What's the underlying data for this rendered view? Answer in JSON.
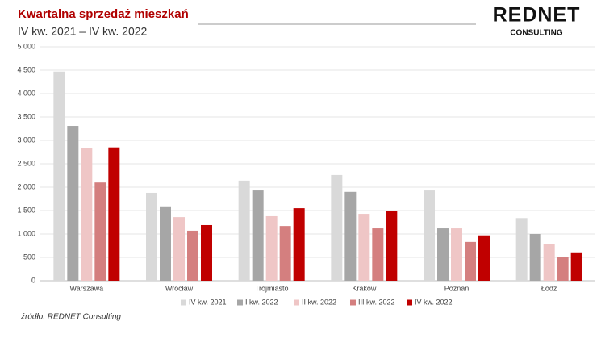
{
  "chart_data": {
    "type": "bar",
    "title": "Kwartalna sprzedaż mieszkań",
    "subtitle": "IV kw. 2021 – IV kw. 2022",
    "logo": "REDNET",
    "logo_sub": "CONSULTING",
    "source": "źródło: REDNET Consulting",
    "categories": [
      "Warszawa",
      "Wrocław",
      "Trójmiasto",
      "Kraków",
      "Poznań",
      "Łódź"
    ],
    "series": [
      {
        "name": "IV kw. 2021",
        "color": "#d9d9d9",
        "values": [
          4470,
          1880,
          2140,
          2260,
          1930,
          1340
        ]
      },
      {
        "name": "I kw. 2022",
        "color": "#a6a6a6",
        "values": [
          3310,
          1590,
          1930,
          1900,
          1120,
          1000
        ]
      },
      {
        "name": "II kw. 2022",
        "color": "#efc6c6",
        "values": [
          2830,
          1360,
          1380,
          1430,
          1120,
          780
        ]
      },
      {
        "name": "III kw. 2022",
        "color": "#d47f7f",
        "values": [
          2100,
          1070,
          1170,
          1120,
          830,
          500
        ]
      },
      {
        "name": "IV kw. 2022",
        "color": "#c00000",
        "values": [
          2850,
          1190,
          1550,
          1500,
          970,
          590
        ]
      }
    ],
    "ylim": [
      0,
      5000
    ],
    "yticks": [
      0,
      500,
      {
        "value": 1000,
        "label": "1 000"
      },
      {
        "value": 1500,
        "label": "1 500"
      },
      {
        "value": 2000,
        "label": "2 000"
      },
      {
        "value": 2500,
        "label": "2 500"
      },
      {
        "value": 3000,
        "label": "3 000"
      },
      {
        "value": 3500,
        "label": "3 500"
      },
      {
        "value": 4000,
        "label": "4 000"
      },
      {
        "value": 4500,
        "label": "4 500"
      },
      {
        "value": 5000,
        "label": "5 000"
      }
    ],
    "grid": true,
    "legend": "bottom"
  }
}
